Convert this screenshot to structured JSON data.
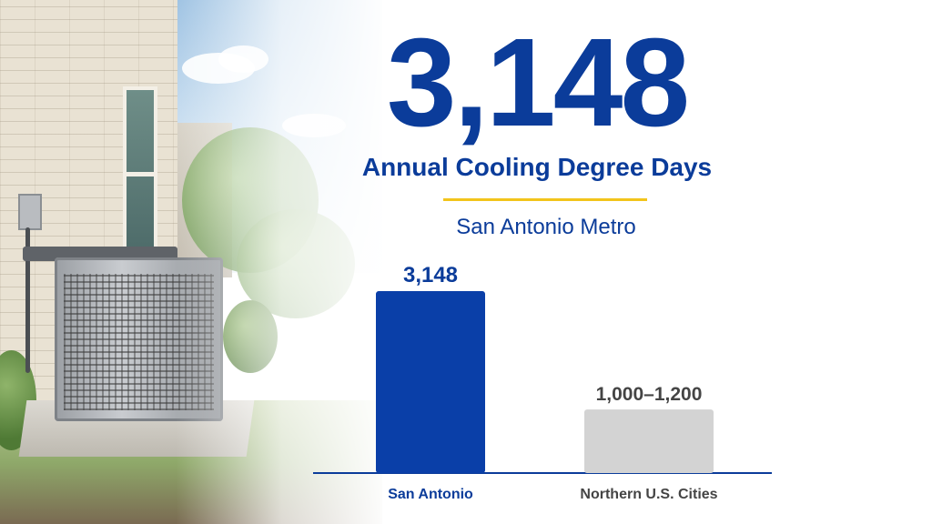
{
  "headline": {
    "value": "3,148",
    "label": "Annual Cooling Degree Days",
    "subtitle": "San Antonio Metro"
  },
  "colors": {
    "primary": "#0b3c9a",
    "bar_primary": "#0a3fa8",
    "bar_secondary": "#d3d3d3",
    "accent_line": "#f2c41b",
    "secondary_text": "#444444"
  },
  "chart_data": {
    "type": "bar",
    "categories": [
      "San Antonio",
      "Northern U.S. Cities"
    ],
    "values": [
      3148,
      1100
    ],
    "value_labels": [
      "3,148",
      "1,000–1,200"
    ],
    "ylim": [
      0,
      3700
    ],
    "grid": false,
    "legend": "none"
  }
}
